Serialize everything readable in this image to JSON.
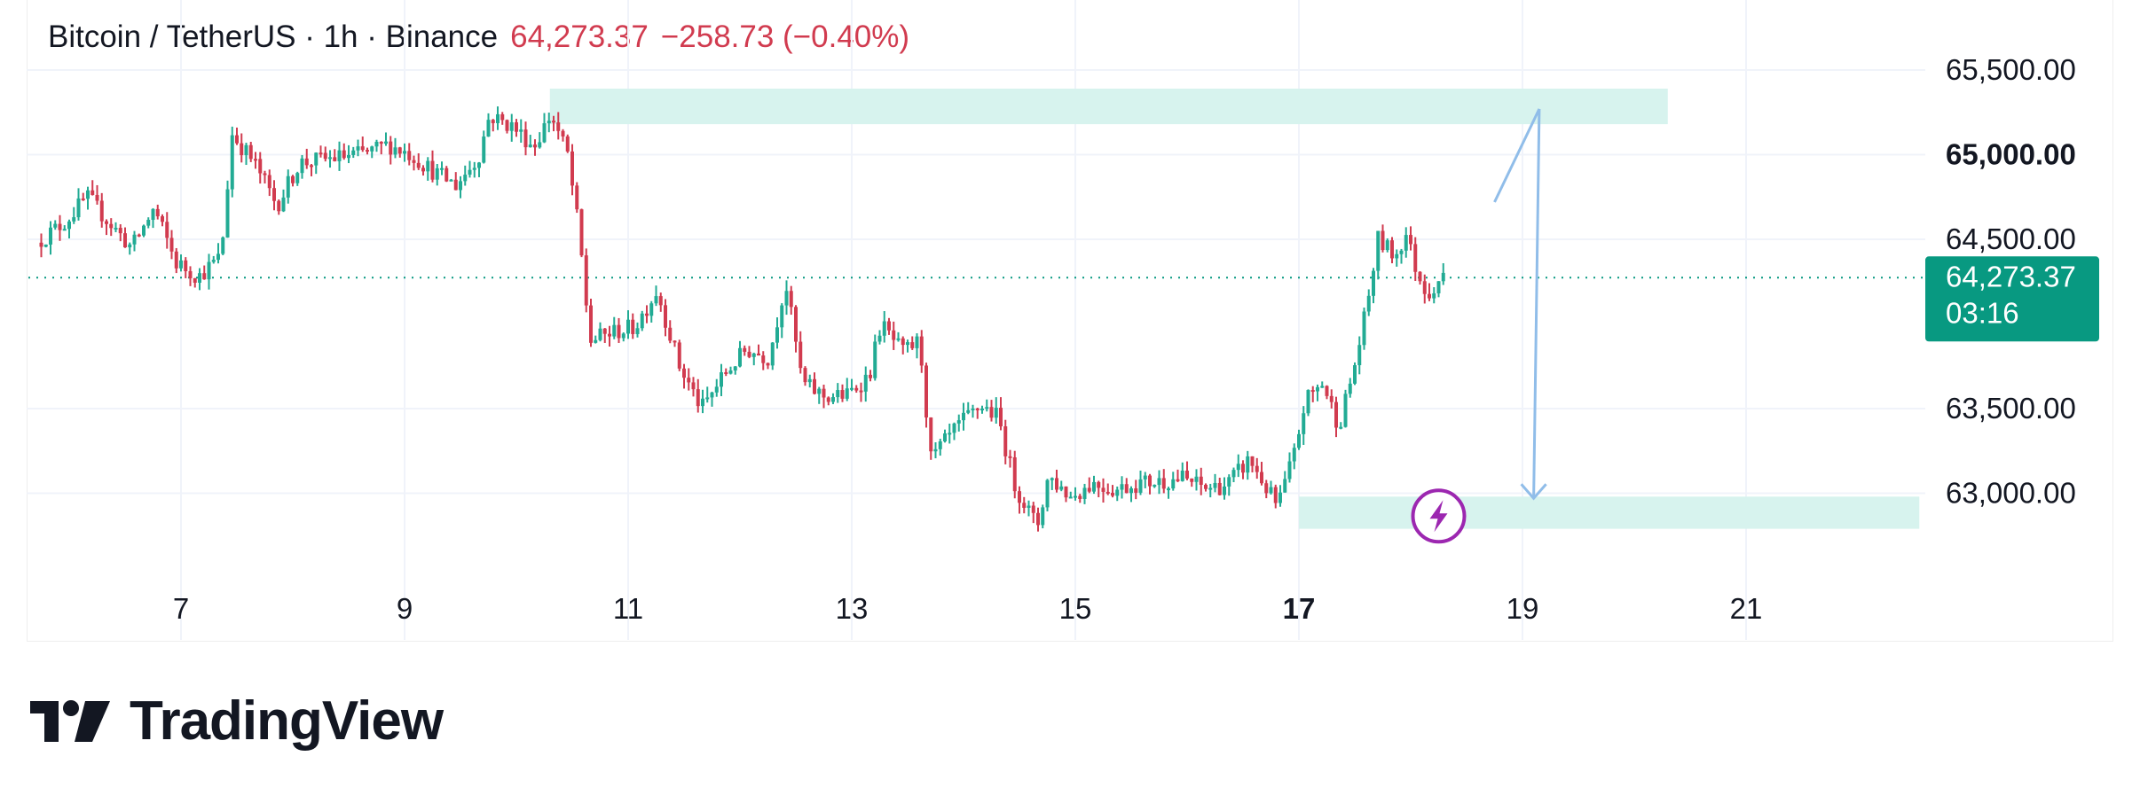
{
  "header": {
    "symbol": "Bitcoin / TetherUS · 1h · Binance",
    "price": "64,273.37",
    "change": "−258.73 (−0.40%)"
  },
  "price_tag": {
    "price": "64,273.37",
    "countdown": "03:16"
  },
  "brand": {
    "name": "TradingView"
  },
  "colors": {
    "up": "#22ab94",
    "down": "#d13b4f",
    "zone": "#d7f3ee",
    "tag": "#089981",
    "arrow": "#90bde9",
    "bolt": "#9c27b0"
  },
  "chart_data": {
    "type": "candlestick",
    "x_ticks": [
      {
        "label": "7",
        "day": 7,
        "bold": false
      },
      {
        "label": "9",
        "day": 9,
        "bold": false
      },
      {
        "label": "11",
        "day": 11,
        "bold": false
      },
      {
        "label": "13",
        "day": 13,
        "bold": false
      },
      {
        "label": "15",
        "day": 15,
        "bold": false
      },
      {
        "label": "17",
        "day": 17,
        "bold": true
      },
      {
        "label": "19",
        "day": 19,
        "bold": false
      },
      {
        "label": "21",
        "day": 21,
        "bold": false
      }
    ],
    "y_ticks": [
      {
        "label": "65,500.00",
        "value": 65500,
        "bold": false
      },
      {
        "label": "65,000.00",
        "value": 65000,
        "bold": true
      },
      {
        "label": "64,500.00",
        "value": 64500,
        "bold": false
      },
      {
        "label": "63,500.00",
        "value": 63500,
        "bold": false
      },
      {
        "label": "63,000.00",
        "value": 63000,
        "bold": false
      }
    ],
    "last_price": 64273.37,
    "zones": [
      {
        "x0": 10.3,
        "x1": 20.3,
        "y0": 65180,
        "y1": 65390
      },
      {
        "x0": 17.0,
        "x1": 22.55,
        "y0": 62790,
        "y1": 62980
      }
    ],
    "arrows": [
      {
        "points": [
          [
            18.75,
            64720
          ],
          [
            19.15,
            65270
          ]
        ],
        "head": false
      },
      {
        "points": [
          [
            19.15,
            65270
          ],
          [
            19.1,
            62970
          ]
        ],
        "head": true
      }
    ],
    "bolt_marker": {
      "x": 18.25,
      "y": 62865
    },
    "price_path": [
      [
        5.75,
        64480
      ],
      [
        6.0,
        64600
      ],
      [
        6.2,
        64750
      ],
      [
        6.4,
        64600
      ],
      [
        6.6,
        64450
      ],
      [
        6.8,
        64680
      ],
      [
        7.0,
        64360
      ],
      [
        7.2,
        64280
      ],
      [
        7.4,
        64400
      ],
      [
        7.5,
        65120
      ],
      [
        7.7,
        64950
      ],
      [
        7.9,
        64700
      ],
      [
        8.1,
        64950
      ],
      [
        8.4,
        64980
      ],
      [
        8.7,
        65010
      ],
      [
        8.9,
        65060
      ],
      [
        9.1,
        65000
      ],
      [
        9.3,
        64900
      ],
      [
        9.5,
        64820
      ],
      [
        9.7,
        64980
      ],
      [
        9.8,
        65230
      ],
      [
        10.0,
        65170
      ],
      [
        10.2,
        65050
      ],
      [
        10.35,
        65240
      ],
      [
        10.5,
        65000
      ],
      [
        10.6,
        64550
      ],
      [
        10.7,
        63900
      ],
      [
        10.9,
        63950
      ],
      [
        11.1,
        63980
      ],
      [
        11.3,
        64200
      ],
      [
        11.5,
        63750
      ],
      [
        11.7,
        63500
      ],
      [
        11.9,
        63700
      ],
      [
        12.1,
        63850
      ],
      [
        12.3,
        63800
      ],
      [
        12.45,
        64250
      ],
      [
        12.6,
        63650
      ],
      [
        12.8,
        63570
      ],
      [
        13.0,
        63580
      ],
      [
        13.2,
        63700
      ],
      [
        13.3,
        64000
      ],
      [
        13.5,
        63830
      ],
      [
        13.65,
        63900
      ],
      [
        13.75,
        63200
      ],
      [
        14.0,
        63400
      ],
      [
        14.2,
        63520
      ],
      [
        14.35,
        63450
      ],
      [
        14.5,
        63050
      ],
      [
        14.7,
        62800
      ],
      [
        14.8,
        63100
      ],
      [
        15.0,
        62980
      ],
      [
        15.2,
        63060
      ],
      [
        15.4,
        63020
      ],
      [
        15.6,
        63060
      ],
      [
        15.8,
        63070
      ],
      [
        16.0,
        63090
      ],
      [
        16.2,
        63030
      ],
      [
        16.4,
        63050
      ],
      [
        16.6,
        63200
      ],
      [
        16.75,
        63030
      ],
      [
        16.85,
        62920
      ],
      [
        17.0,
        63230
      ],
      [
        17.1,
        63550
      ],
      [
        17.25,
        63650
      ],
      [
        17.4,
        63400
      ],
      [
        17.5,
        63650
      ],
      [
        17.55,
        63780
      ],
      [
        17.65,
        64100
      ],
      [
        17.75,
        64500
      ],
      [
        17.9,
        64400
      ],
      [
        18.0,
        64530
      ],
      [
        18.1,
        64300
      ],
      [
        18.2,
        64180
      ],
      [
        18.3,
        64273
      ]
    ]
  }
}
